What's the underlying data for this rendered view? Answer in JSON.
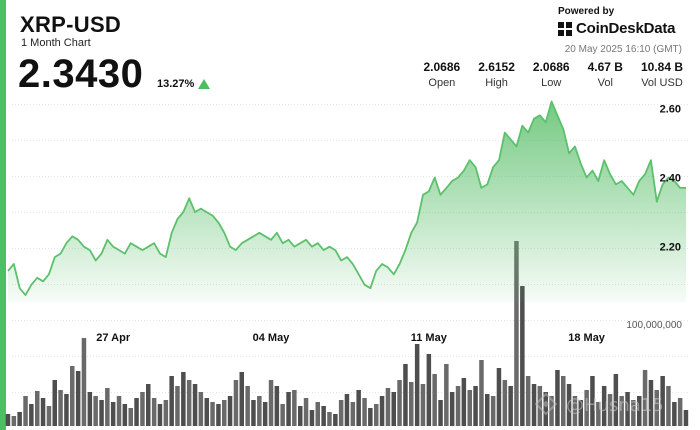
{
  "header": {
    "symbol": "XRP-USD",
    "subtitle": "1 Month Chart",
    "price": "2.3430",
    "change": "13.27%",
    "powered_by": "Powered by",
    "brand": "CoinDeskData",
    "timestamp": "20 May 2025 16:10 (GMT)"
  },
  "stats": [
    {
      "value": "2.0686",
      "label": "Open"
    },
    {
      "value": "2.6152",
      "label": "High"
    },
    {
      "value": "2.0686",
      "label": "Low"
    },
    {
      "value": "4.67 B",
      "label": "Vol"
    },
    {
      "value": "10.84 B",
      "label": "Vol USD"
    }
  ],
  "colors": {
    "accent": "#4bbf61",
    "line": "#5cc06c",
    "volume": "#555555"
  },
  "watermark": "@Husna15",
  "chart_data": {
    "type": "area",
    "y_ticks": [
      "2.60",
      "2.40",
      "2.20"
    ],
    "y_tick_values": [
      2.6,
      2.4,
      2.2
    ],
    "ylim": [
      2.04,
      2.63
    ],
    "x_tick_labels": [
      "27 Apr",
      "04 May",
      "11 May",
      "18 May"
    ],
    "x_tick_index": [
      18,
      45,
      72,
      99
    ],
    "grid": false,
    "price": [
      2.13,
      2.15,
      2.08,
      2.06,
      2.09,
      2.11,
      2.1,
      2.12,
      2.17,
      2.18,
      2.21,
      2.23,
      2.22,
      2.2,
      2.19,
      2.16,
      2.18,
      2.22,
      2.2,
      2.19,
      2.18,
      2.21,
      2.2,
      2.19,
      2.2,
      2.21,
      2.18,
      2.17,
      2.24,
      2.28,
      2.3,
      2.34,
      2.3,
      2.31,
      2.3,
      2.29,
      2.27,
      2.24,
      2.2,
      2.19,
      2.21,
      2.22,
      2.23,
      2.24,
      2.23,
      2.22,
      2.24,
      2.21,
      2.22,
      2.2,
      2.21,
      2.22,
      2.2,
      2.21,
      2.19,
      2.2,
      2.19,
      2.16,
      2.17,
      2.15,
      2.12,
      2.09,
      2.08,
      2.13,
      2.15,
      2.14,
      2.12,
      2.15,
      2.19,
      2.24,
      2.27,
      2.35,
      2.36,
      2.4,
      2.35,
      2.37,
      2.39,
      2.4,
      2.42,
      2.45,
      2.43,
      2.37,
      2.38,
      2.43,
      2.45,
      2.53,
      2.51,
      2.49,
      2.55,
      2.53,
      2.57,
      2.58,
      2.56,
      2.62,
      2.58,
      2.54,
      2.47,
      2.49,
      2.44,
      2.4,
      2.42,
      2.39,
      2.45,
      2.41,
      2.38,
      2.39,
      2.37,
      2.35,
      2.39,
      2.41,
      2.45,
      2.33,
      2.38,
      2.4,
      2.39,
      2.37,
      2.37
    ],
    "volume_axis_label": "100,000,000",
    "volume": [
      0.12,
      0.1,
      0.14,
      0.3,
      0.22,
      0.35,
      0.28,
      0.2,
      0.46,
      0.36,
      0.32,
      0.6,
      0.55,
      0.88,
      0.34,
      0.3,
      0.26,
      0.38,
      0.24,
      0.3,
      0.22,
      0.18,
      0.28,
      0.34,
      0.42,
      0.28,
      0.22,
      0.26,
      0.5,
      0.4,
      0.54,
      0.46,
      0.42,
      0.34,
      0.28,
      0.24,
      0.22,
      0.26,
      0.3,
      0.46,
      0.54,
      0.4,
      0.26,
      0.3,
      0.24,
      0.46,
      0.4,
      0.22,
      0.34,
      0.36,
      0.2,
      0.28,
      0.16,
      0.24,
      0.2,
      0.14,
      0.12,
      0.26,
      0.32,
      0.24,
      0.36,
      0.28,
      0.18,
      0.22,
      0.3,
      0.38,
      0.34,
      0.46,
      0.62,
      0.44,
      0.82,
      0.42,
      0.72,
      0.52,
      0.26,
      0.62,
      0.34,
      0.4,
      0.48,
      0.36,
      0.4,
      0.66,
      0.32,
      0.3,
      0.58,
      0.46,
      0.4,
      1.85,
      1.4,
      0.5,
      0.42,
      0.4,
      0.34,
      0.3,
      0.56,
      0.5,
      0.42,
      0.3,
      0.26,
      0.36,
      0.5,
      0.24,
      0.4,
      0.32,
      0.52,
      0.3,
      0.34,
      0.26,
      0.3,
      0.56,
      0.46,
      0.36,
      0.5,
      0.4,
      0.24,
      0.28,
      0.16
    ]
  }
}
